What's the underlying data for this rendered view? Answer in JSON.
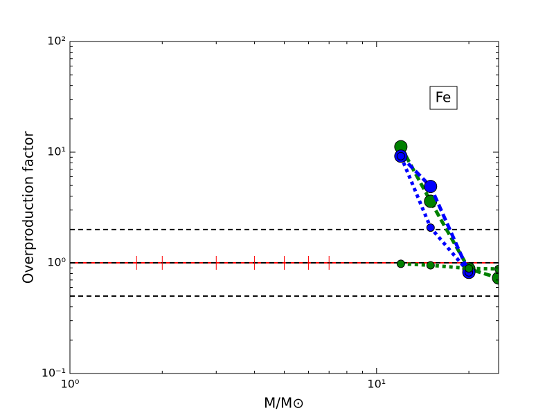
{
  "chart_data": {
    "type": "line",
    "xlabel": "M/M⊙",
    "ylabel": "Overproduction factor",
    "annotation": "Fe",
    "xlog": true,
    "ylog": true,
    "xlim": [
      1,
      25
    ],
    "ylim": [
      0.1,
      100
    ],
    "xticks": [
      {
        "value": 1,
        "label": "10⁰"
      },
      {
        "value": 10,
        "label": "10¹"
      }
    ],
    "yticks": [
      {
        "value": 0.1,
        "label": "10⁻¹"
      },
      {
        "value": 1,
        "label": "10⁰"
      },
      {
        "value": 10,
        "label": "10¹"
      },
      {
        "value": 100,
        "label": "10²"
      }
    ],
    "hlines": [
      {
        "y": 2,
        "color": "#000000",
        "dashed": true
      },
      {
        "y": 1,
        "color": "#ff0000",
        "dashed": false
      },
      {
        "y": 1,
        "color": "#000000",
        "dashed": true
      },
      {
        "y": 0.5,
        "color": "#000000",
        "dashed": true
      }
    ],
    "series": [
      {
        "color": "#008000",
        "marker": "big",
        "line": "dashed",
        "x": [
          12,
          15,
          20,
          25
        ],
        "values": [
          11.2,
          3.6,
          0.88,
          0.73
        ]
      },
      {
        "color": "#0000ff",
        "marker": "big",
        "line": "dashed",
        "x": [
          12,
          15,
          20
        ],
        "values": [
          9.2,
          4.9,
          0.82
        ]
      },
      {
        "color": "#0000ff",
        "marker": "small",
        "line": "dotted",
        "x": [
          12,
          15,
          20
        ],
        "values": [
          9.2,
          2.08,
          0.82
        ]
      },
      {
        "color": "#008000",
        "marker": "small",
        "line": "dotted",
        "x": [
          12,
          15,
          20,
          25
        ],
        "values": [
          0.98,
          0.95,
          0.89,
          0.88
        ]
      },
      {
        "color": "#ff0000",
        "marker": "vline",
        "line": "none",
        "x": [
          1.65,
          2,
          3,
          4,
          5,
          6,
          7
        ],
        "values": [
          1,
          1,
          1,
          1,
          1,
          1,
          1
        ]
      }
    ]
  }
}
